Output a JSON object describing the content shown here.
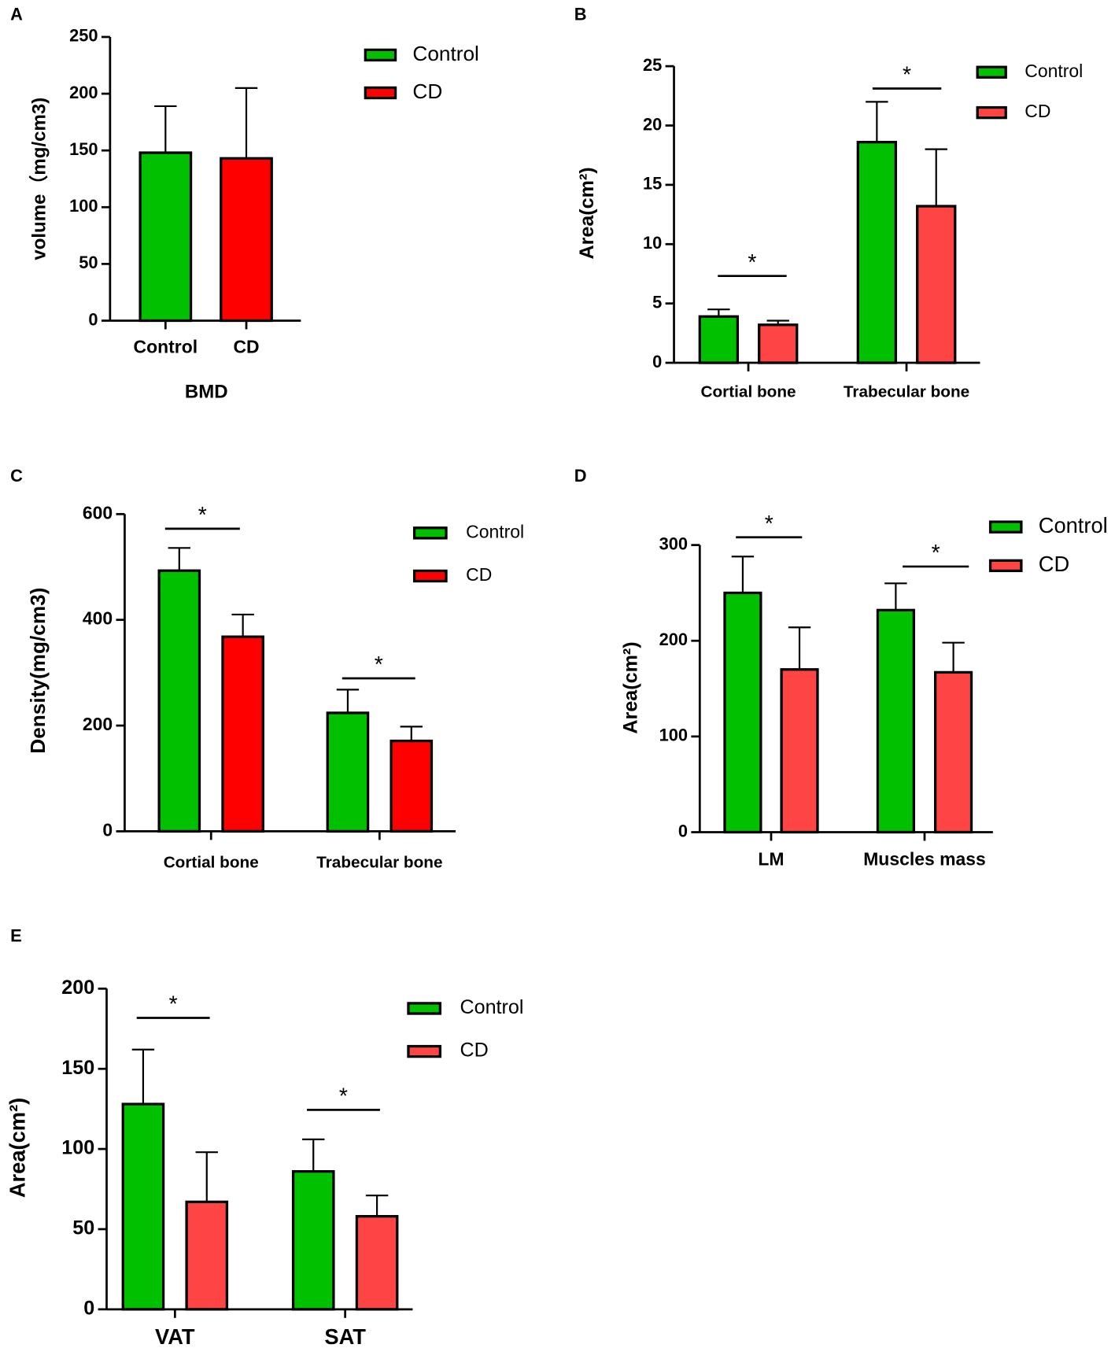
{
  "chart_data": [
    {
      "type": "bar",
      "panel": "A",
      "ylabel": "volume（mg/cm3)",
      "xlabel": "BMD",
      "categories": [
        "Control",
        "CD"
      ],
      "series": [
        {
          "name": "Control",
          "color": "#00c000",
          "values": [
            148,
            null
          ],
          "errors": [
            41,
            null
          ]
        },
        {
          "name": "CD",
          "color": "#ff0000",
          "values": [
            null,
            143
          ],
          "errors": [
            null,
            62
          ]
        }
      ],
      "ylim": [
        0,
        250
      ],
      "yticks": [
        0,
        50,
        100,
        150,
        200,
        250
      ],
      "annotations": [
        null,
        null
      ]
    },
    {
      "type": "bar",
      "panel": "B",
      "ylabel": "Area(cm²)",
      "categories": [
        "Cortial bone",
        "Trabecular bone"
      ],
      "series": [
        {
          "name": "Control",
          "color": "#00c000",
          "values": [
            3.9,
            18.6
          ],
          "errors": [
            0.6,
            3.4
          ]
        },
        {
          "name": "CD",
          "color": "#ff4444",
          "values": [
            3.2,
            13.2
          ],
          "errors": [
            0.35,
            4.8
          ]
        }
      ],
      "ylim": [
        0,
        25
      ],
      "yticks": [
        0,
        5,
        10,
        15,
        20,
        25
      ],
      "annotations": [
        "*",
        "*"
      ]
    },
    {
      "type": "bar",
      "panel": "C",
      "ylabel": "Density(mg/cm3)",
      "categories": [
        "Cortial bone",
        "Trabecular bone"
      ],
      "series": [
        {
          "name": "Control",
          "color": "#00c000",
          "values": [
            493,
            224
          ],
          "errors": [
            43,
            44
          ]
        },
        {
          "name": "CD",
          "color": "#ff0000",
          "values": [
            368,
            171
          ],
          "errors": [
            42,
            27
          ]
        }
      ],
      "ylim": [
        0,
        600
      ],
      "yticks": [
        0,
        200,
        400,
        600
      ],
      "annotations": [
        "*",
        "*"
      ]
    },
    {
      "type": "bar",
      "panel": "D",
      "ylabel": "Area(cm²)",
      "categories": [
        "LM",
        "Muscles mass"
      ],
      "series": [
        {
          "name": "Control",
          "color": "#00c000",
          "values": [
            250,
            232
          ],
          "errors": [
            38,
            28
          ]
        },
        {
          "name": "CD",
          "color": "#ff4444",
          "values": [
            170,
            167
          ],
          "errors": [
            44,
            31
          ]
        }
      ],
      "ylim": [
        0,
        300
      ],
      "yticks": [
        0,
        100,
        200,
        300
      ],
      "annotations": [
        "*",
        "*"
      ]
    },
    {
      "type": "bar",
      "panel": "E",
      "ylabel": "Area(cm²)",
      "categories": [
        "VAT",
        "SAT"
      ],
      "series": [
        {
          "name": "Control",
          "color": "#00c000",
          "values": [
            128,
            86
          ],
          "errors": [
            34,
            20
          ]
        },
        {
          "name": "CD",
          "color": "#ff4444",
          "values": [
            67,
            58
          ],
          "errors": [
            31,
            13
          ]
        }
      ],
      "ylim": [
        0,
        200
      ],
      "yticks": [
        0,
        50,
        100,
        150,
        200
      ],
      "annotations": [
        "*",
        "*"
      ]
    }
  ]
}
